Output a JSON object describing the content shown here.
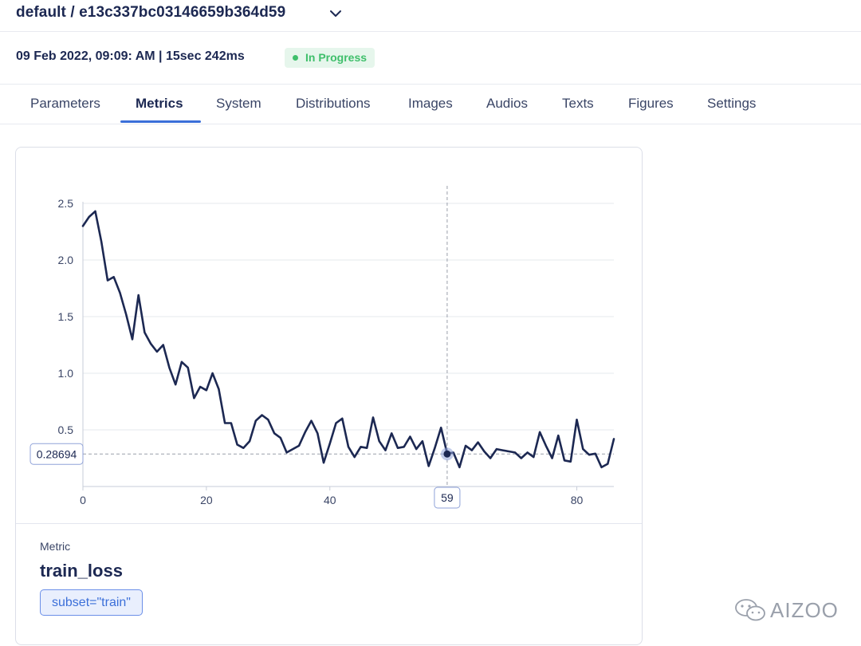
{
  "header": {
    "title": "default / e13c337bc03146659b364d59"
  },
  "run_info": {
    "date_duration": "09 Feb 2022, 09:09: AM | 15sec 242ms",
    "status": "In Progress"
  },
  "tabs": [
    {
      "label": "Parameters",
      "active": false
    },
    {
      "label": "Metrics",
      "active": true
    },
    {
      "label": "System",
      "active": false
    },
    {
      "label": "Distributions",
      "active": false
    },
    {
      "label": "Images",
      "active": false
    },
    {
      "label": "Audios",
      "active": false
    },
    {
      "label": "Texts",
      "active": false
    },
    {
      "label": "Figures",
      "active": false
    },
    {
      "label": "Settings",
      "active": false
    }
  ],
  "chart_data": {
    "type": "line",
    "title": "",
    "xlabel": "",
    "ylabel": "",
    "xlim": [
      0,
      86
    ],
    "ylim": [
      0,
      2.5
    ],
    "y_ticks": [
      "0.5",
      "1.0",
      "1.5",
      "2.0",
      "2.5"
    ],
    "y_tick_values": [
      0.5,
      1.0,
      1.5,
      2.0,
      2.5
    ],
    "x_ticks": [
      "0",
      "20",
      "40",
      "60",
      "80"
    ],
    "x_tick_values": [
      0,
      20,
      40,
      60,
      80
    ],
    "grid": "horizontal",
    "line_color": "#1c2852",
    "hover": {
      "x": 59,
      "x_label": "59",
      "y": 0.28694,
      "y_label": "0.28694"
    },
    "series": [
      {
        "values": [
          2.3,
          2.38,
          2.43,
          2.16,
          1.82,
          1.85,
          1.71,
          1.52,
          1.3,
          1.69,
          1.36,
          1.26,
          1.19,
          1.25,
          1.05,
          0.9,
          1.1,
          1.05,
          0.78,
          0.88,
          0.85,
          1.0,
          0.86,
          0.56,
          0.56,
          0.37,
          0.34,
          0.4,
          0.58,
          0.63,
          0.59,
          0.47,
          0.43,
          0.3,
          0.33,
          0.36,
          0.48,
          0.58,
          0.47,
          0.21,
          0.38,
          0.56,
          0.6,
          0.35,
          0.26,
          0.35,
          0.34,
          0.61,
          0.4,
          0.32,
          0.47,
          0.34,
          0.35,
          0.44,
          0.33,
          0.4,
          0.18,
          0.34,
          0.52,
          0.29,
          0.3,
          0.17,
          0.36,
          0.32,
          0.39,
          0.31,
          0.25,
          0.33,
          0.32,
          0.31,
          0.3,
          0.25,
          0.3,
          0.26,
          0.48,
          0.36,
          0.25,
          0.45,
          0.23,
          0.22,
          0.59,
          0.33,
          0.28,
          0.29,
          0.17,
          0.2,
          0.42
        ]
      }
    ]
  },
  "metric": {
    "caption": "Metric",
    "name": "train_loss",
    "context": "subset=\"train\""
  },
  "watermark": {
    "text": "AIZOO"
  }
}
